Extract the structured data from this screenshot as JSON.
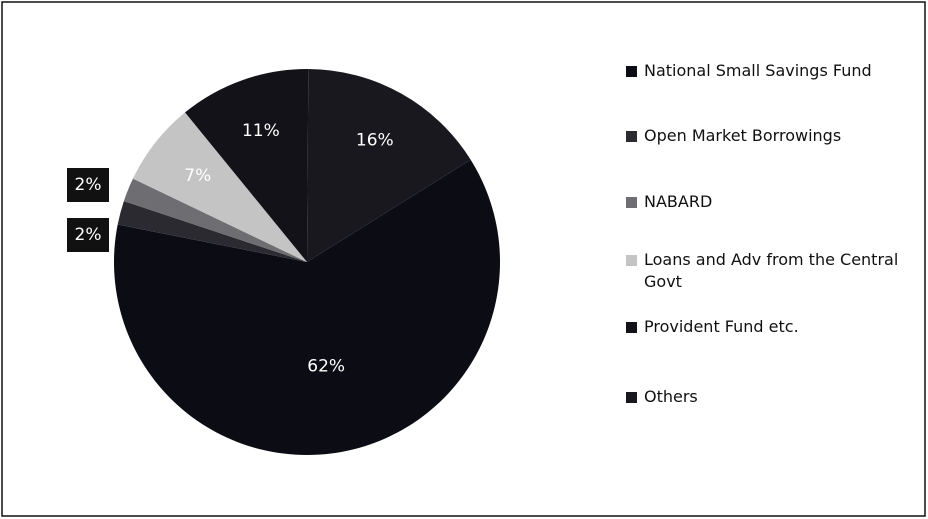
{
  "chart_data": {
    "type": "pie",
    "categories": [
      "National Small Savings Fund",
      "Open Market Borrowings",
      "NABARD",
      "Loans and Adv from the Central Govt",
      "Provident Fund etc.",
      "Others"
    ],
    "values": [
      62,
      2,
      2,
      7,
      11,
      16
    ],
    "value_labels": [
      "62%",
      "2%",
      "2%",
      "7%",
      "11%",
      "16%"
    ],
    "colors": [
      "#0c0c14",
      "#2a2a30",
      "#6e6e72",
      "#c4c4c4",
      "#121218",
      "#18181e"
    ],
    "legend": "right"
  }
}
